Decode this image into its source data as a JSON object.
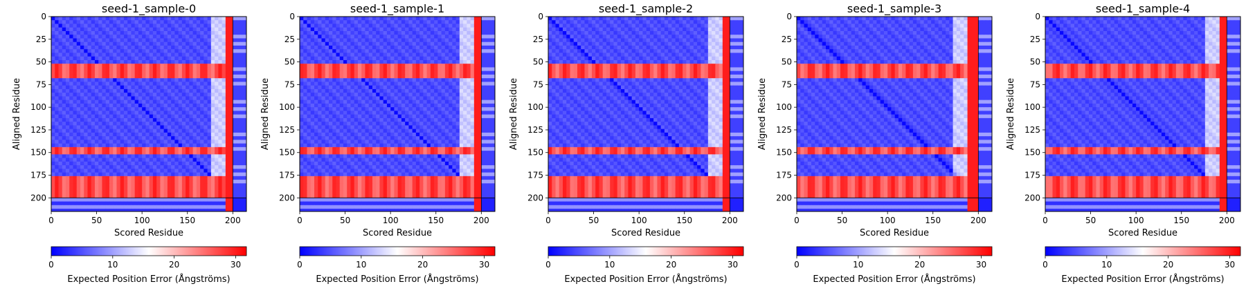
{
  "figure": {
    "colorbar_label": "Expected Position Error (Ångströms)"
  },
  "chart_data": [
    {
      "type": "heatmap",
      "title": "seed-1_sample-0",
      "xlabel": "Scored Residue",
      "ylabel": "Aligned Residue",
      "xlim": [
        0,
        215
      ],
      "ylim": [
        0,
        215
      ],
      "xticks": [
        0,
        50,
        100,
        150,
        200
      ],
      "yticks": [
        0,
        25,
        50,
        75,
        100,
        125,
        150,
        175,
        200
      ],
      "colorbar": {
        "label": "Expected Position Error (Ångströms)",
        "range": [
          0,
          31.75
        ],
        "ticks": [
          0,
          10,
          20,
          30
        ],
        "colors": [
          "#0000ff",
          "#ffffff",
          "#ff0000"
        ]
      },
      "features": {
        "token_boundary": 200,
        "red_column_start": 190,
        "red_rows_bands": [
          [
            51,
            60
          ],
          [
            63,
            67
          ],
          [
            144,
            149
          ],
          [
            176,
            199
          ]
        ],
        "diagonal_low_error": true
      }
    },
    {
      "type": "heatmap",
      "title": "seed-1_sample-1",
      "xlabel": "Scored Residue",
      "ylabel": "Aligned Residue",
      "xlim": [
        0,
        215
      ],
      "ylim": [
        0,
        215
      ],
      "xticks": [
        0,
        50,
        100,
        150,
        200
      ],
      "yticks": [
        0,
        25,
        50,
        75,
        100,
        125,
        150,
        175,
        200
      ],
      "colorbar": {
        "label": "Expected Position Error (Ångströms)",
        "range": [
          0,
          31.75
        ],
        "ticks": [
          0,
          10,
          20,
          30
        ],
        "colors": [
          "#0000ff",
          "#ffffff",
          "#ff0000"
        ]
      },
      "features": {
        "token_boundary": 200,
        "red_column_start": 190,
        "red_rows_bands": [
          [
            51,
            60
          ],
          [
            63,
            67
          ],
          [
            144,
            149
          ],
          [
            176,
            199
          ]
        ],
        "diagonal_low_error": true
      }
    },
    {
      "type": "heatmap",
      "title": "seed-1_sample-2",
      "xlabel": "Scored Residue",
      "ylabel": "Aligned Residue",
      "xlim": [
        0,
        215
      ],
      "ylim": [
        0,
        215
      ],
      "xticks": [
        0,
        50,
        100,
        150,
        200
      ],
      "yticks": [
        0,
        25,
        50,
        75,
        100,
        125,
        150,
        175,
        200
      ],
      "colorbar": {
        "label": "Expected Position Error (Ångströms)",
        "range": [
          0,
          31.75
        ],
        "ticks": [
          0,
          10,
          20,
          30
        ],
        "colors": [
          "#0000ff",
          "#ffffff",
          "#ff0000"
        ]
      },
      "features": {
        "token_boundary": 200,
        "red_column_start": 190,
        "red_rows_bands": [
          [
            51,
            60
          ],
          [
            63,
            67
          ],
          [
            144,
            149
          ],
          [
            176,
            199
          ]
        ],
        "diagonal_low_error": true
      }
    },
    {
      "type": "heatmap",
      "title": "seed-1_sample-3",
      "xlabel": "Scored Residue",
      "ylabel": "Aligned Residue",
      "xlim": [
        0,
        215
      ],
      "ylim": [
        0,
        215
      ],
      "xticks": [
        0,
        50,
        100,
        150,
        200
      ],
      "yticks": [
        0,
        25,
        50,
        75,
        100,
        125,
        150,
        175,
        200
      ],
      "colorbar": {
        "label": "Expected Position Error (Ångströms)",
        "range": [
          0,
          31.75
        ],
        "ticks": [
          0,
          10,
          20,
          30
        ],
        "colors": [
          "#0000ff",
          "#ffffff",
          "#ff0000"
        ]
      },
      "features": {
        "token_boundary": 200,
        "red_column_start": 185,
        "red_rows_bands": [
          [
            51,
            60
          ],
          [
            63,
            67
          ],
          [
            144,
            149
          ],
          [
            176,
            199
          ]
        ],
        "diagonal_low_error": true
      }
    },
    {
      "type": "heatmap",
      "title": "seed-1_sample-4",
      "xlabel": "Scored Residue",
      "ylabel": "Aligned Residue",
      "xlim": [
        0,
        215
      ],
      "ylim": [
        0,
        215
      ],
      "xticks": [
        0,
        50,
        100,
        150,
        200
      ],
      "yticks": [
        0,
        25,
        50,
        75,
        100,
        125,
        150,
        175,
        200
      ],
      "colorbar": {
        "label": "Expected Position Error (Ångströms)",
        "range": [
          0,
          31.75
        ],
        "ticks": [
          0,
          10,
          20,
          30
        ],
        "colors": [
          "#0000ff",
          "#ffffff",
          "#ff0000"
        ]
      },
      "features": {
        "token_boundary": 200,
        "red_column_start": 190,
        "red_rows_bands": [
          [
            51,
            60
          ],
          [
            63,
            67
          ],
          [
            144,
            149
          ],
          [
            176,
            199
          ]
        ],
        "diagonal_low_error": true
      }
    }
  ]
}
